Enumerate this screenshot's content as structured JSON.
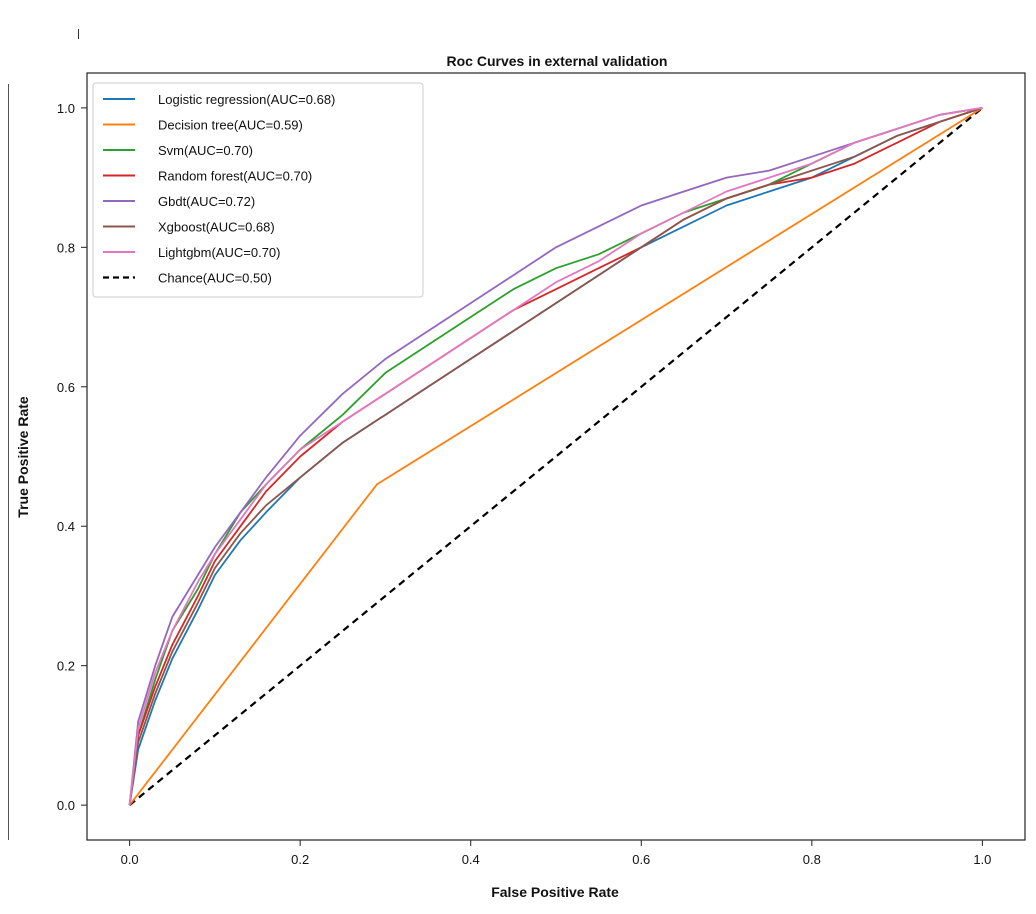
{
  "chart_data": {
    "type": "line",
    "title": "Roc Curves in external validation",
    "xlabel": "False Positive Rate",
    "ylabel": "True Positive Rate",
    "xlim": [
      -0.05,
      1.05
    ],
    "ylim": [
      -0.05,
      1.05
    ],
    "xticks": [
      0.0,
      0.2,
      0.4,
      0.6,
      0.8,
      1.0
    ],
    "yticks": [
      0.0,
      0.2,
      0.4,
      0.6,
      0.8,
      1.0
    ],
    "xtick_labels": [
      "0.0",
      "0.2",
      "0.4",
      "0.6",
      "0.8",
      "1.0"
    ],
    "ytick_labels": [
      "0.0",
      "0.2",
      "0.4",
      "0.6",
      "0.8",
      "1.0"
    ],
    "grid": false,
    "legend_position": "top-left",
    "series": [
      {
        "name": "Logistic regression(AUC=0.68)",
        "color": "#1f77b4",
        "dash": "solid",
        "x": [
          0.0,
          0.01,
          0.03,
          0.05,
          0.08,
          0.1,
          0.13,
          0.16,
          0.2,
          0.25,
          0.3,
          0.35,
          0.4,
          0.45,
          0.5,
          0.55,
          0.6,
          0.65,
          0.7,
          0.75,
          0.8,
          0.85,
          0.9,
          0.95,
          1.0
        ],
        "y": [
          0.0,
          0.08,
          0.15,
          0.21,
          0.28,
          0.33,
          0.38,
          0.42,
          0.47,
          0.52,
          0.56,
          0.6,
          0.64,
          0.68,
          0.72,
          0.76,
          0.8,
          0.83,
          0.86,
          0.88,
          0.9,
          0.93,
          0.96,
          0.98,
          1.0
        ]
      },
      {
        "name": "Decision tree(AUC=0.59)",
        "color": "#ff7f0e",
        "dash": "solid",
        "x": [
          0.0,
          0.29,
          1.0
        ],
        "y": [
          0.0,
          0.46,
          1.0
        ]
      },
      {
        "name": "Svm(AUC=0.70)",
        "color": "#2ca02c",
        "dash": "solid",
        "x": [
          0.0,
          0.01,
          0.03,
          0.05,
          0.08,
          0.1,
          0.13,
          0.16,
          0.2,
          0.25,
          0.3,
          0.35,
          0.4,
          0.45,
          0.5,
          0.55,
          0.6,
          0.65,
          0.7,
          0.75,
          0.8,
          0.85,
          0.9,
          0.95,
          1.0
        ],
        "y": [
          0.0,
          0.1,
          0.18,
          0.25,
          0.31,
          0.36,
          0.42,
          0.46,
          0.51,
          0.56,
          0.62,
          0.66,
          0.7,
          0.74,
          0.77,
          0.79,
          0.82,
          0.85,
          0.87,
          0.89,
          0.92,
          0.95,
          0.97,
          0.99,
          1.0
        ]
      },
      {
        "name": "Random forest(AUC=0.70)",
        "color": "#d62728",
        "dash": "solid",
        "x": [
          0.0,
          0.01,
          0.03,
          0.05,
          0.08,
          0.1,
          0.13,
          0.16,
          0.2,
          0.25,
          0.3,
          0.35,
          0.4,
          0.45,
          0.5,
          0.55,
          0.6,
          0.65,
          0.7,
          0.75,
          0.8,
          0.85,
          0.9,
          0.95,
          1.0
        ],
        "y": [
          0.0,
          0.1,
          0.17,
          0.23,
          0.3,
          0.35,
          0.4,
          0.45,
          0.5,
          0.55,
          0.59,
          0.63,
          0.67,
          0.71,
          0.74,
          0.77,
          0.8,
          0.84,
          0.87,
          0.89,
          0.9,
          0.92,
          0.95,
          0.98,
          1.0
        ]
      },
      {
        "name": "Gbdt(AUC=0.72)",
        "color": "#9467bd",
        "dash": "solid",
        "x": [
          0.0,
          0.01,
          0.03,
          0.05,
          0.08,
          0.1,
          0.13,
          0.16,
          0.2,
          0.25,
          0.3,
          0.35,
          0.4,
          0.45,
          0.5,
          0.55,
          0.6,
          0.65,
          0.7,
          0.75,
          0.8,
          0.85,
          0.9,
          0.95,
          1.0
        ],
        "y": [
          0.0,
          0.12,
          0.2,
          0.27,
          0.33,
          0.37,
          0.42,
          0.47,
          0.53,
          0.59,
          0.64,
          0.68,
          0.72,
          0.76,
          0.8,
          0.83,
          0.86,
          0.88,
          0.9,
          0.91,
          0.93,
          0.95,
          0.97,
          0.99,
          1.0
        ]
      },
      {
        "name": "Xgboost(AUC=0.68)",
        "color": "#8c564b",
        "dash": "solid",
        "x": [
          0.0,
          0.01,
          0.03,
          0.05,
          0.08,
          0.1,
          0.13,
          0.16,
          0.2,
          0.25,
          0.3,
          0.35,
          0.4,
          0.45,
          0.5,
          0.55,
          0.6,
          0.65,
          0.7,
          0.75,
          0.8,
          0.85,
          0.9,
          0.95,
          1.0
        ],
        "y": [
          0.0,
          0.09,
          0.16,
          0.22,
          0.29,
          0.34,
          0.39,
          0.43,
          0.47,
          0.52,
          0.56,
          0.6,
          0.64,
          0.68,
          0.72,
          0.76,
          0.8,
          0.84,
          0.87,
          0.89,
          0.91,
          0.93,
          0.96,
          0.98,
          1.0
        ]
      },
      {
        "name": "Lightgbm(AUC=0.70)",
        "color": "#e377c2",
        "dash": "solid",
        "x": [
          0.0,
          0.01,
          0.03,
          0.05,
          0.08,
          0.1,
          0.13,
          0.16,
          0.2,
          0.25,
          0.3,
          0.35,
          0.4,
          0.45,
          0.5,
          0.55,
          0.6,
          0.65,
          0.7,
          0.75,
          0.8,
          0.85,
          0.9,
          0.95,
          1.0
        ],
        "y": [
          0.0,
          0.11,
          0.19,
          0.25,
          0.32,
          0.36,
          0.41,
          0.46,
          0.51,
          0.55,
          0.59,
          0.63,
          0.67,
          0.71,
          0.75,
          0.78,
          0.82,
          0.85,
          0.88,
          0.9,
          0.92,
          0.95,
          0.97,
          0.99,
          1.0
        ]
      },
      {
        "name": "Chance(AUC=0.50)",
        "color": "#000000",
        "dash": "dashed",
        "x": [
          0.0,
          1.0
        ],
        "y": [
          0.0,
          1.0
        ]
      }
    ]
  }
}
